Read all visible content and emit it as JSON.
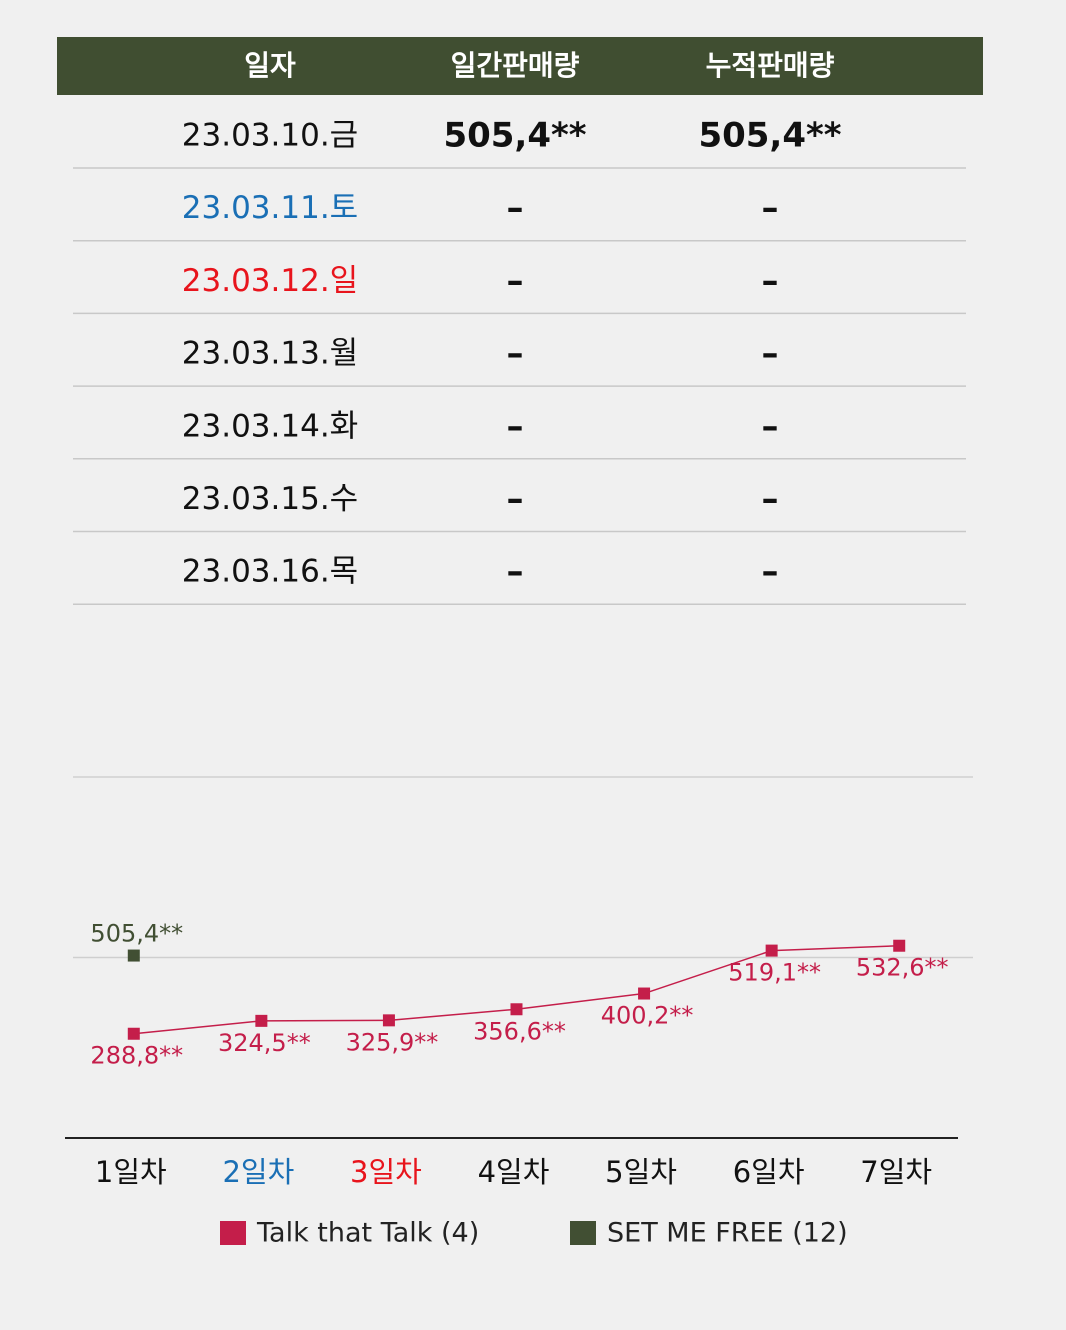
{
  "table": {
    "header": [
      "일자",
      "일간판매량",
      "누적판매량"
    ],
    "header_color": "#404e31",
    "rows": [
      {
        "date": "23.03.10.금",
        "daily": "505,4**",
        "cumulative": "505,4**",
        "color": "#111111"
      },
      {
        "date": "23.03.11.토",
        "daily": "–",
        "cumulative": "–",
        "color": "#1a6fb5"
      },
      {
        "date": "23.03.12.일",
        "daily": "–",
        "cumulative": "–",
        "color": "#e8141c"
      },
      {
        "date": "23.03.13.월",
        "daily": "–",
        "cumulative": "–",
        "color": "#111111"
      },
      {
        "date": "23.03.14.화",
        "daily": "–",
        "cumulative": "–",
        "color": "#111111"
      },
      {
        "date": "23.03.15.수",
        "daily": "–",
        "cumulative": "–",
        "color": "#111111"
      },
      {
        "date": "23.03.16.목",
        "daily": "–",
        "cumulative": "–",
        "color": "#111111"
      }
    ]
  },
  "chart_data": {
    "type": "line",
    "categories": [
      "1일차",
      "2일차",
      "3일차",
      "4일차",
      "5일차",
      "6일차",
      "7일차"
    ],
    "category_colors": [
      "#111111",
      "#1a6fb5",
      "#e8141c",
      "#111111",
      "#111111",
      "#111111",
      "#111111"
    ],
    "series": [
      {
        "name": "Talk that Talk (4)",
        "color": "#c41e4a",
        "values": [
          288.8,
          324.5,
          325.9,
          356.6,
          400.2,
          519.1,
          532.6
        ],
        "value_labels": [
          "288,8**",
          "324,5**",
          "325,9**",
          "356,6**",
          "400,2**",
          "519,1**",
          "532,6**"
        ]
      },
      {
        "name": "SET ME FREE (12)",
        "color": "#414f33",
        "values": [
          505.4,
          null,
          null,
          null,
          null,
          null,
          null
        ],
        "value_labels": [
          "505,4**",
          null,
          null,
          null,
          null,
          null,
          null
        ]
      }
    ],
    "ylim": [
      0,
      1000
    ],
    "yticks": [
      0,
      500,
      1000
    ],
    "grid": true
  }
}
